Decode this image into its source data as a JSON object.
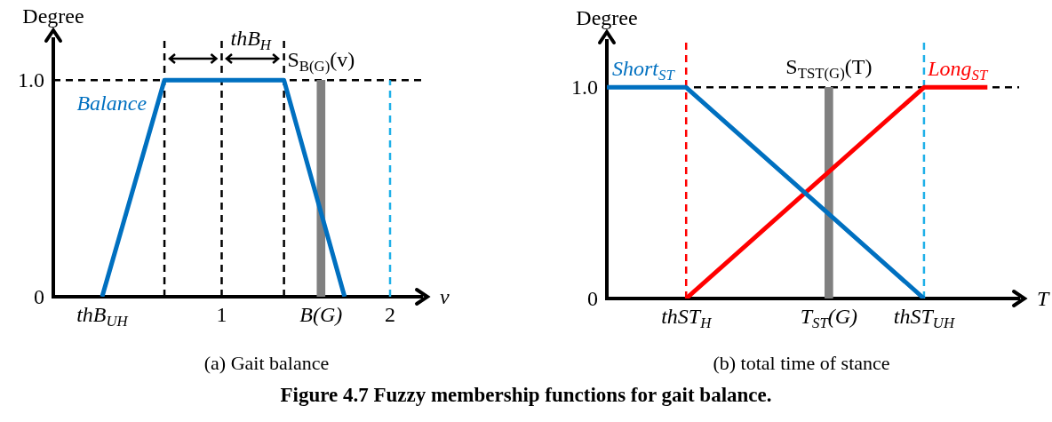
{
  "chart_data": [
    {
      "type": "line",
      "title": "(a) Gait balance",
      "ylabel": "Degree",
      "xlabel": "v",
      "xlim": [
        0,
        2.19
      ],
      "ylim": [
        0,
        1.19
      ],
      "xticks": [
        {
          "value": 0.29,
          "label": "thB$_{UH}$"
        },
        1,
        {
          "value": 1.59,
          "label": "B(G)"
        },
        2
      ],
      "yticks": [
        0,
        {
          "value": 1,
          "label": "1.0"
        }
      ],
      "series": [
        {
          "name": "Balance",
          "color": "#0070c0",
          "x": [
            0.29,
            0.66,
            1.37,
            1.73
          ],
          "values": [
            0,
            1,
            1,
            0
          ]
        },
        {
          "type": "bar",
          "color": "#808080",
          "x": [
            1.59
          ],
          "values": [
            1
          ]
        },
        {
          "color": "#1fb0e8",
          "line_style": "dashed",
          "x": [
            2,
            2
          ],
          "values": [
            0,
            1
          ]
        }
      ],
      "ref_lines": [
        {
          "axis": "y",
          "value": 1,
          "color": "#000000",
          "line_style": "dashed"
        },
        {
          "axis": "x",
          "value": 0.66,
          "color": "#000000",
          "line_style": "dashed"
        },
        {
          "axis": "x",
          "value": 1,
          "color": "#000000",
          "line_style": "dashed",
          "label": "thB$_{H}$"
        },
        {
          "axis": "x",
          "value": 1.37,
          "color": "#000000",
          "line_style": "dashed"
        }
      ],
      "annotations": [
        {
          "text": "S$_{B(G)}$(v)",
          "x": 1.59,
          "y": 1
        }
      ],
      "grid": false,
      "legend": false,
      "marker": "none"
    },
    {
      "type": "line",
      "title": "(b) total time of stance",
      "ylabel": "Degree",
      "xlabel": "T",
      "ylim": [
        0,
        1.22
      ],
      "categories": [
        null,
        null,
        null,
        null,
        null,
        "thST$_{H}$",
        null,
        null,
        null,
        null,
        null,
        null,
        null,
        null,
        "T$_{ST}$(G)",
        null,
        null,
        null,
        null,
        null,
        "thST$_{UH}$",
        null,
        null,
        null,
        null,
        null,
        null
      ],
      "yticks": [
        0,
        {
          "value": 1,
          "label": "1.0"
        }
      ],
      "series": [
        {
          "name": "Short$_{ST}$",
          "color": "#0070c0",
          "values": [
            1,
            null,
            null,
            null,
            null,
            1,
            null,
            null,
            null,
            null,
            null,
            null,
            null,
            null,
            null,
            null,
            null,
            null,
            null,
            null,
            0,
            null,
            null,
            null,
            null,
            null,
            null
          ]
        },
        {
          "name": "Long$_{ST}$",
          "color": "#ff0000",
          "values": [
            null,
            null,
            null,
            null,
            null,
            0,
            null,
            null,
            null,
            null,
            null,
            null,
            null,
            null,
            null,
            null,
            null,
            null,
            null,
            null,
            1,
            null,
            null,
            null,
            1,
            null,
            null
          ]
        },
        {
          "type": "bar",
          "color": "#808080",
          "values": [
            null,
            null,
            null,
            null,
            null,
            null,
            null,
            null,
            null,
            null,
            null,
            null,
            null,
            null,
            1,
            null,
            null,
            null,
            null,
            null,
            null,
            null,
            null,
            null,
            null,
            null,
            null
          ]
        }
      ],
      "ref_lines": [
        {
          "axis": "y",
          "value": 1,
          "color": "#000000",
          "line_style": "dashed"
        },
        {
          "axis": "x",
          "value": "thST$_{H}$",
          "color": "#ff0000",
          "line_style": "dashed"
        },
        {
          "axis": "x",
          "value": "thST$_{UH}$",
          "color": "#1fb0e8",
          "line_style": "dashed"
        }
      ],
      "annotations": [
        {
          "text": "S$_{TST(G)}$(T)",
          "x": "T$_{ST}$(G)",
          "y": 1
        },
        "Figure 4.7  Fuzzy membership functions for gait balance."
      ],
      "grid": false,
      "legend": false,
      "marker": "none"
    }
  ]
}
